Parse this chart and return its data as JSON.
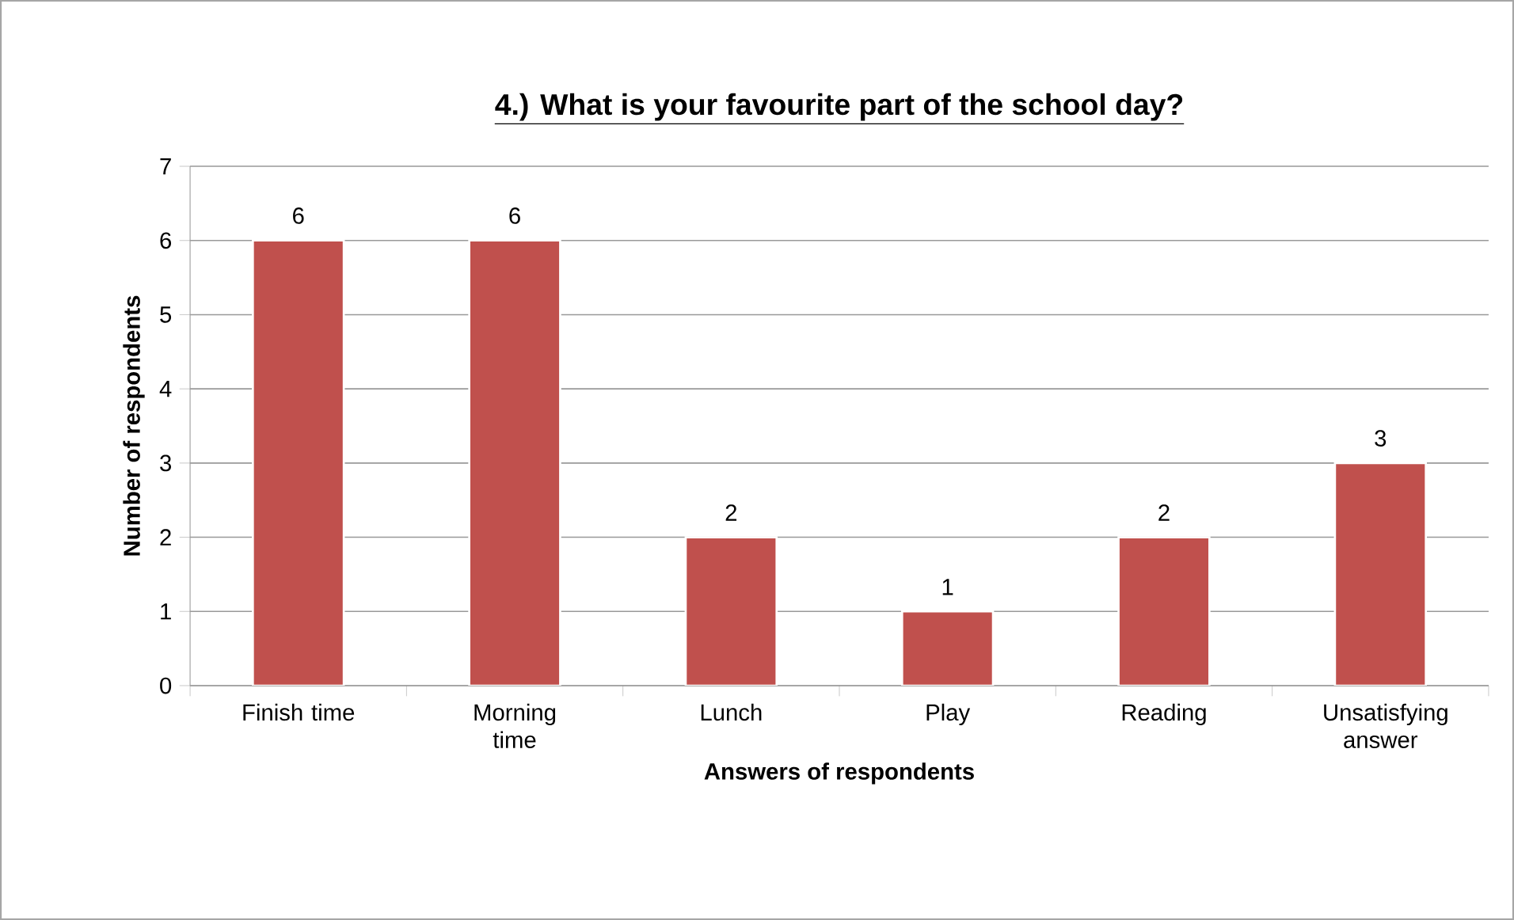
{
  "chart_data": {
    "type": "bar",
    "title": "4.) What is your favourite part of the school day?",
    "xlabel": "Answers of respondents",
    "ylabel": "Number of respondents",
    "categories": [
      "Finish time",
      "Morning time",
      "Lunch",
      "Play",
      "Reading",
      "Unsatisfying answer"
    ],
    "values": [
      6,
      6,
      2,
      1,
      2,
      3
    ],
    "color": "#c0504d",
    "ylim": [
      0,
      7
    ],
    "yticks": [
      0,
      1,
      2,
      3,
      4,
      5,
      6,
      7
    ],
    "grid": "y",
    "data_labels": true
  }
}
